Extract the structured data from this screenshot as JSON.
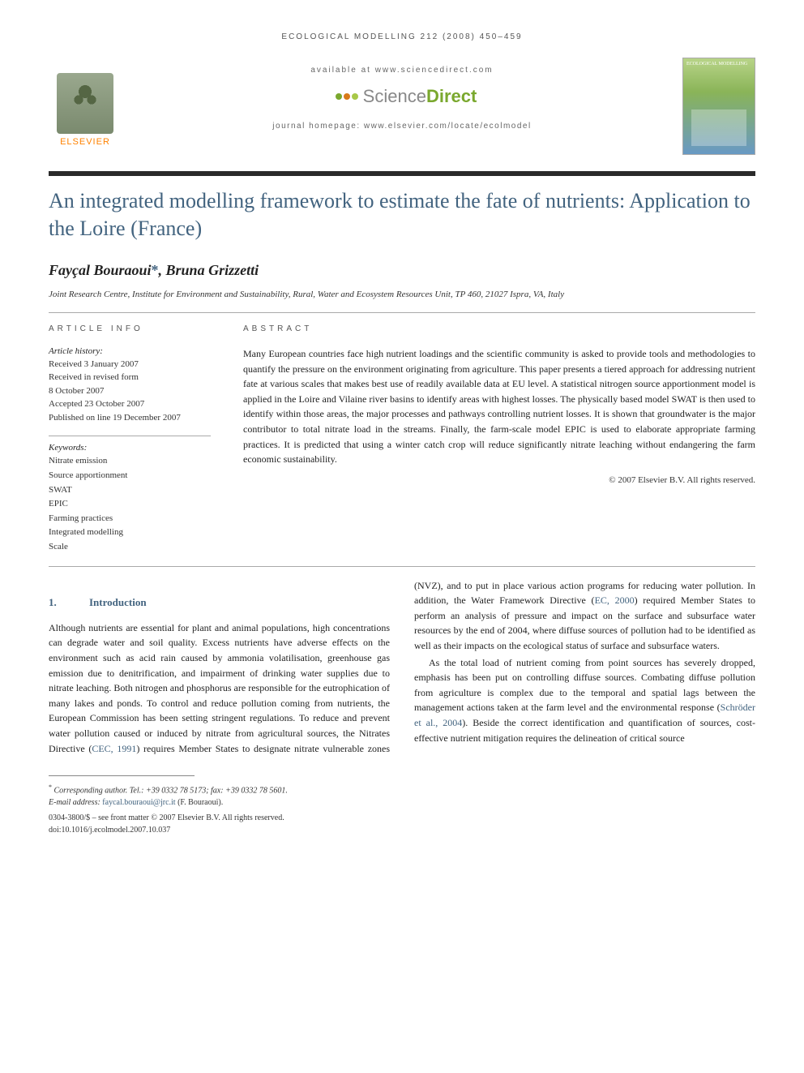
{
  "header": {
    "running_head": "ECOLOGICAL MODELLING 212 (2008) 450–459",
    "available_at": "available at www.sciencedirect.com",
    "sd_brand_left": "Science",
    "sd_brand_right": "Direct",
    "homepage": "journal homepage: www.elsevier.com/locate/ecolmodel",
    "elsevier_label": "ELSEVIER",
    "cover_title": "ECOLOGICAL MODELLING"
  },
  "sd_colors": {
    "dot1": "#e8b030",
    "dot2": "#7aa82e",
    "dot3": "#d87a1a",
    "dot4": "#a8c848",
    "dot5": "#5a8a2a"
  },
  "title": "An integrated modelling framework to estimate the fate of nutrients: Application to the Loire (France)",
  "authors": "Fayçal Bouraoui*, Bruna Grizzetti",
  "affiliation": "Joint Research Centre, Institute for Environment and Sustainability, Rural, Water and Ecosystem Resources Unit, TP 460, 21027 Ispra, VA, Italy",
  "article_info": {
    "label": "ARTICLE INFO",
    "history_head": "Article history:",
    "history": "Received 3 January 2007\nReceived in revised form\n8 October 2007\nAccepted 23 October 2007\nPublished on line 19 December 2007",
    "keywords_head": "Keywords:",
    "keywords": "Nitrate emission\nSource apportionment\nSWAT\nEPIC\nFarming practices\nIntegrated modelling\nScale"
  },
  "abstract": {
    "label": "ABSTRACT",
    "text": "Many European countries face high nutrient loadings and the scientific community is asked to provide tools and methodologies to quantify the pressure on the environment originating from agriculture. This paper presents a tiered approach for addressing nutrient fate at various scales that makes best use of readily available data at EU level. A statistical nitrogen source apportionment model is applied in the Loire and Vilaine river basins to identify areas with highest losses. The physically based model SWAT is then used to identify within those areas, the major processes and pathways controlling nutrient losses. It is shown that groundwater is the major contributor to total nitrate load in the streams. Finally, the farm-scale model EPIC is used to elaborate appropriate farming practices. It is predicted that using a winter catch crop will reduce significantly nitrate leaching without endangering the farm economic sustainability.",
    "copyright": "© 2007 Elsevier B.V. All rights reserved."
  },
  "intro": {
    "num": "1.",
    "heading": "Introduction",
    "p1": "Although nutrients are essential for plant and animal populations, high concentrations can degrade water and soil quality. Excess nutrients have adverse effects on the environment such as acid rain caused by ammonia volatilisation, greenhouse gas emission due to denitrification, and impairment of drinking water supplies due to nitrate leaching. Both nitrogen and phosphorus are responsible for the eutrophication of many lakes and ponds. To control and reduce pollution coming from nutrients, the European Commission has been setting stringent regulations. To reduce and prevent water pollution caused or induced by nitrate from agricultural sources, the Nitrates Directive (",
    "cite1": "CEC, 1991",
    "p1b": ") requires Member States to designate nitrate vulnerable zones (NVZ), and to put in place various action programs for reducing water pollution. In addition, the Water Framework Directive (",
    "cite2": "EC, 2000",
    "p1c": ") required Member States to perform an analysis of pressure and impact on the surface and subsurface water resources by the end of 2004, where diffuse sources of pollution had to be identified as well as their impacts on the ecological status of surface and subsurface waters.",
    "p2a": "As the total load of nutrient coming from point sources has severely dropped, emphasis has been put on controlling diffuse sources. Combating diffuse pollution from agriculture is complex due to the temporal and spatial lags between the management actions taken at the farm level and the environmental response (",
    "cite3": "Schröder et al., 2004",
    "p2b": "). Beside the correct identification and quantification of sources, cost-effective nutrient mitigation requires the delineation of critical source"
  },
  "footer": {
    "corresponding": "Corresponding author. Tel.: +39 0332 78 5173; fax: +39 0332 78 5601.",
    "email_label": "E-mail address: ",
    "email": "faycal.bouraoui@jrc.it",
    "email_person": " (F. Bouraoui).",
    "issn_line": "0304-3800/$ – see front matter © 2007 Elsevier B.V. All rights reserved.",
    "doi": "doi:10.1016/j.ecolmodel.2007.10.037"
  },
  "colors": {
    "heading_blue": "#42637f",
    "bar_dark": "#2a2a2a"
  }
}
